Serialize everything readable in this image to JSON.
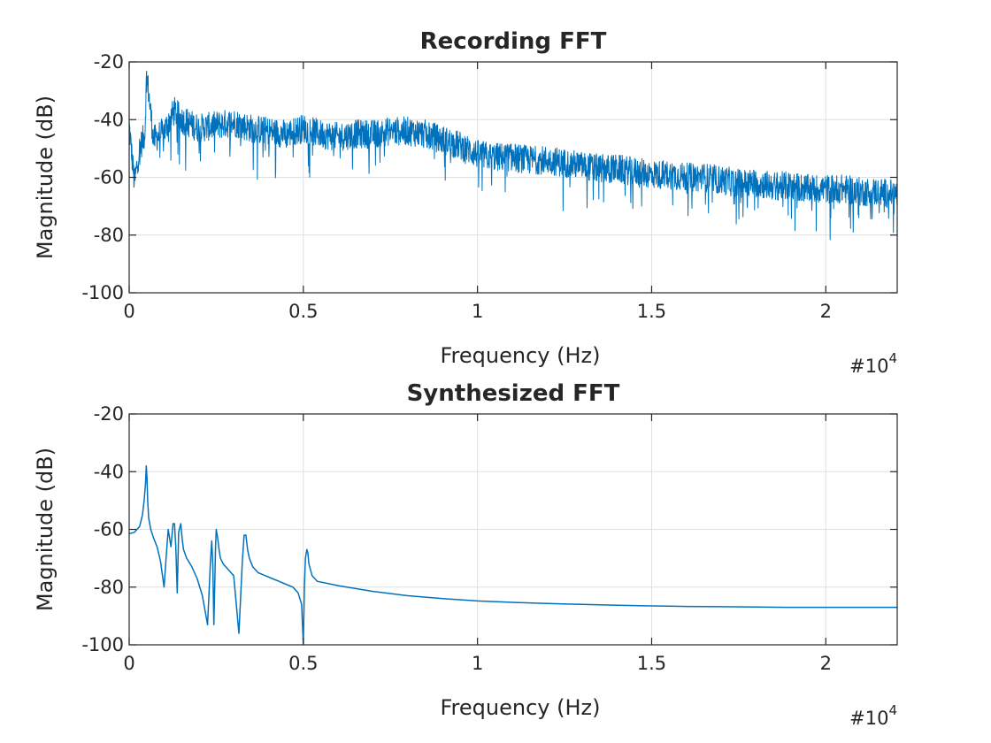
{
  "chart_data": [
    {
      "type": "line",
      "title": "Recording FFT",
      "xlabel": "Frequency (Hz)",
      "ylabel": "Magnitude (dB)",
      "x_exponent": "#10",
      "x_exponent_power": "4",
      "xlim": [
        0,
        22050
      ],
      "ylim": [
        -100,
        -20
      ],
      "x_ticks": [
        0,
        5000,
        10000,
        15000,
        20000
      ],
      "x_tick_labels": [
        "0",
        "0.5",
        "1",
        "1.5",
        "2"
      ],
      "y_ticks": [
        -100,
        -80,
        -60,
        -40,
        -20
      ],
      "y_tick_labels": [
        "-100",
        "-80",
        "-60",
        "-40",
        "-20"
      ],
      "grid": true,
      "line_color": "#0072BD",
      "envelope": {
        "x": [
          0,
          150,
          300,
          450,
          500,
          700,
          1000,
          1300,
          1500,
          2000,
          2500,
          3000,
          3500,
          4000,
          4500,
          5000,
          5500,
          6000,
          6500,
          7000,
          7500,
          8000,
          8500,
          9000,
          9500,
          10000,
          10500,
          11000,
          11500,
          12000,
          12500,
          13000,
          13500,
          14000,
          14500,
          15000,
          15500,
          16000,
          16500,
          17000,
          17500,
          18000,
          18500,
          19000,
          19500,
          20000,
          20500,
          21000,
          21500,
          22050
        ],
        "y": [
          -42,
          -62,
          -50,
          -45,
          -24,
          -47,
          -44,
          -37,
          -40,
          -43,
          -42,
          -41,
          -43,
          -44,
          -45,
          -43,
          -45,
          -46,
          -45,
          -45,
          -44,
          -44,
          -45,
          -47,
          -49,
          -52,
          -53,
          -53,
          -54,
          -54,
          -55,
          -56,
          -57,
          -57,
          -58,
          -59,
          -59,
          -60,
          -60,
          -61,
          -62,
          -62,
          -63,
          -63,
          -64,
          -64,
          -64,
          -65,
          -65,
          -66
        ]
      },
      "spread_db": 5
    },
    {
      "type": "line",
      "title": "Synthesized FFT",
      "xlabel": "Frequency (Hz)",
      "ylabel": "Magnitude (dB)",
      "x_exponent": "#10",
      "x_exponent_power": "4",
      "xlim": [
        0,
        22050
      ],
      "ylim": [
        -100,
        -20
      ],
      "x_ticks": [
        0,
        5000,
        10000,
        15000,
        20000
      ],
      "x_tick_labels": [
        "0",
        "0.5",
        "1",
        "1.5",
        "2"
      ],
      "y_ticks": [
        -100,
        -80,
        -60,
        -40,
        -20
      ],
      "y_tick_labels": [
        "-100",
        "-80",
        "-60",
        "-40",
        "-20"
      ],
      "grid": true,
      "line_color": "#0072BD",
      "series": [
        {
          "x": [
            0,
            150,
            300,
            380,
            430,
            470,
            490,
            510,
            530,
            560,
            620,
            700,
            800,
            900,
            1000,
            1060,
            1120,
            1200,
            1260,
            1300,
            1340,
            1380,
            1420,
            1480,
            1520,
            1560,
            1650,
            1800,
            1950,
            2100,
            2250,
            2330,
            2370,
            2400,
            2430,
            2460,
            2480,
            2500,
            2540,
            2580,
            2620,
            2700,
            2850,
            3000,
            3150,
            3250,
            3300,
            3350,
            3400,
            3450,
            3550,
            3700,
            3900,
            4100,
            4300,
            4500,
            4700,
            4850,
            4950,
            5000,
            5030,
            5060,
            5100,
            5130,
            5160,
            5250,
            5400,
            6000,
            7000,
            8000,
            9000,
            10000,
            11000,
            12000,
            13000,
            14000,
            15000,
            16000,
            17000,
            18000,
            19000,
            20000,
            21000,
            22050
          ],
          "y": [
            -61.5,
            -61,
            -59,
            -55,
            -50,
            -44,
            -38,
            -42,
            -50,
            -56,
            -60,
            -63,
            -66,
            -71,
            -80,
            -70,
            -60,
            -66,
            -58,
            -58,
            -66,
            -82,
            -61,
            -58,
            -63,
            -67,
            -70,
            -73,
            -77,
            -83,
            -93,
            -72,
            -64,
            -72,
            -93,
            -78,
            -66,
            -60,
            -63,
            -67,
            -70,
            -72,
            -74,
            -76,
            -96,
            -71,
            -62,
            -62,
            -67,
            -70,
            -73,
            -75,
            -76,
            -77,
            -78,
            -79,
            -80,
            -82,
            -86,
            -100,
            -80,
            -70,
            -67,
            -68,
            -72,
            -76,
            -78,
            -79.5,
            -81.5,
            -83,
            -84,
            -84.8,
            -85.3,
            -85.7,
            -86,
            -86.3,
            -86.5,
            -86.7,
            -86.8,
            -86.9,
            -87,
            -87,
            -87,
            -87
          ]
        }
      ]
    }
  ]
}
